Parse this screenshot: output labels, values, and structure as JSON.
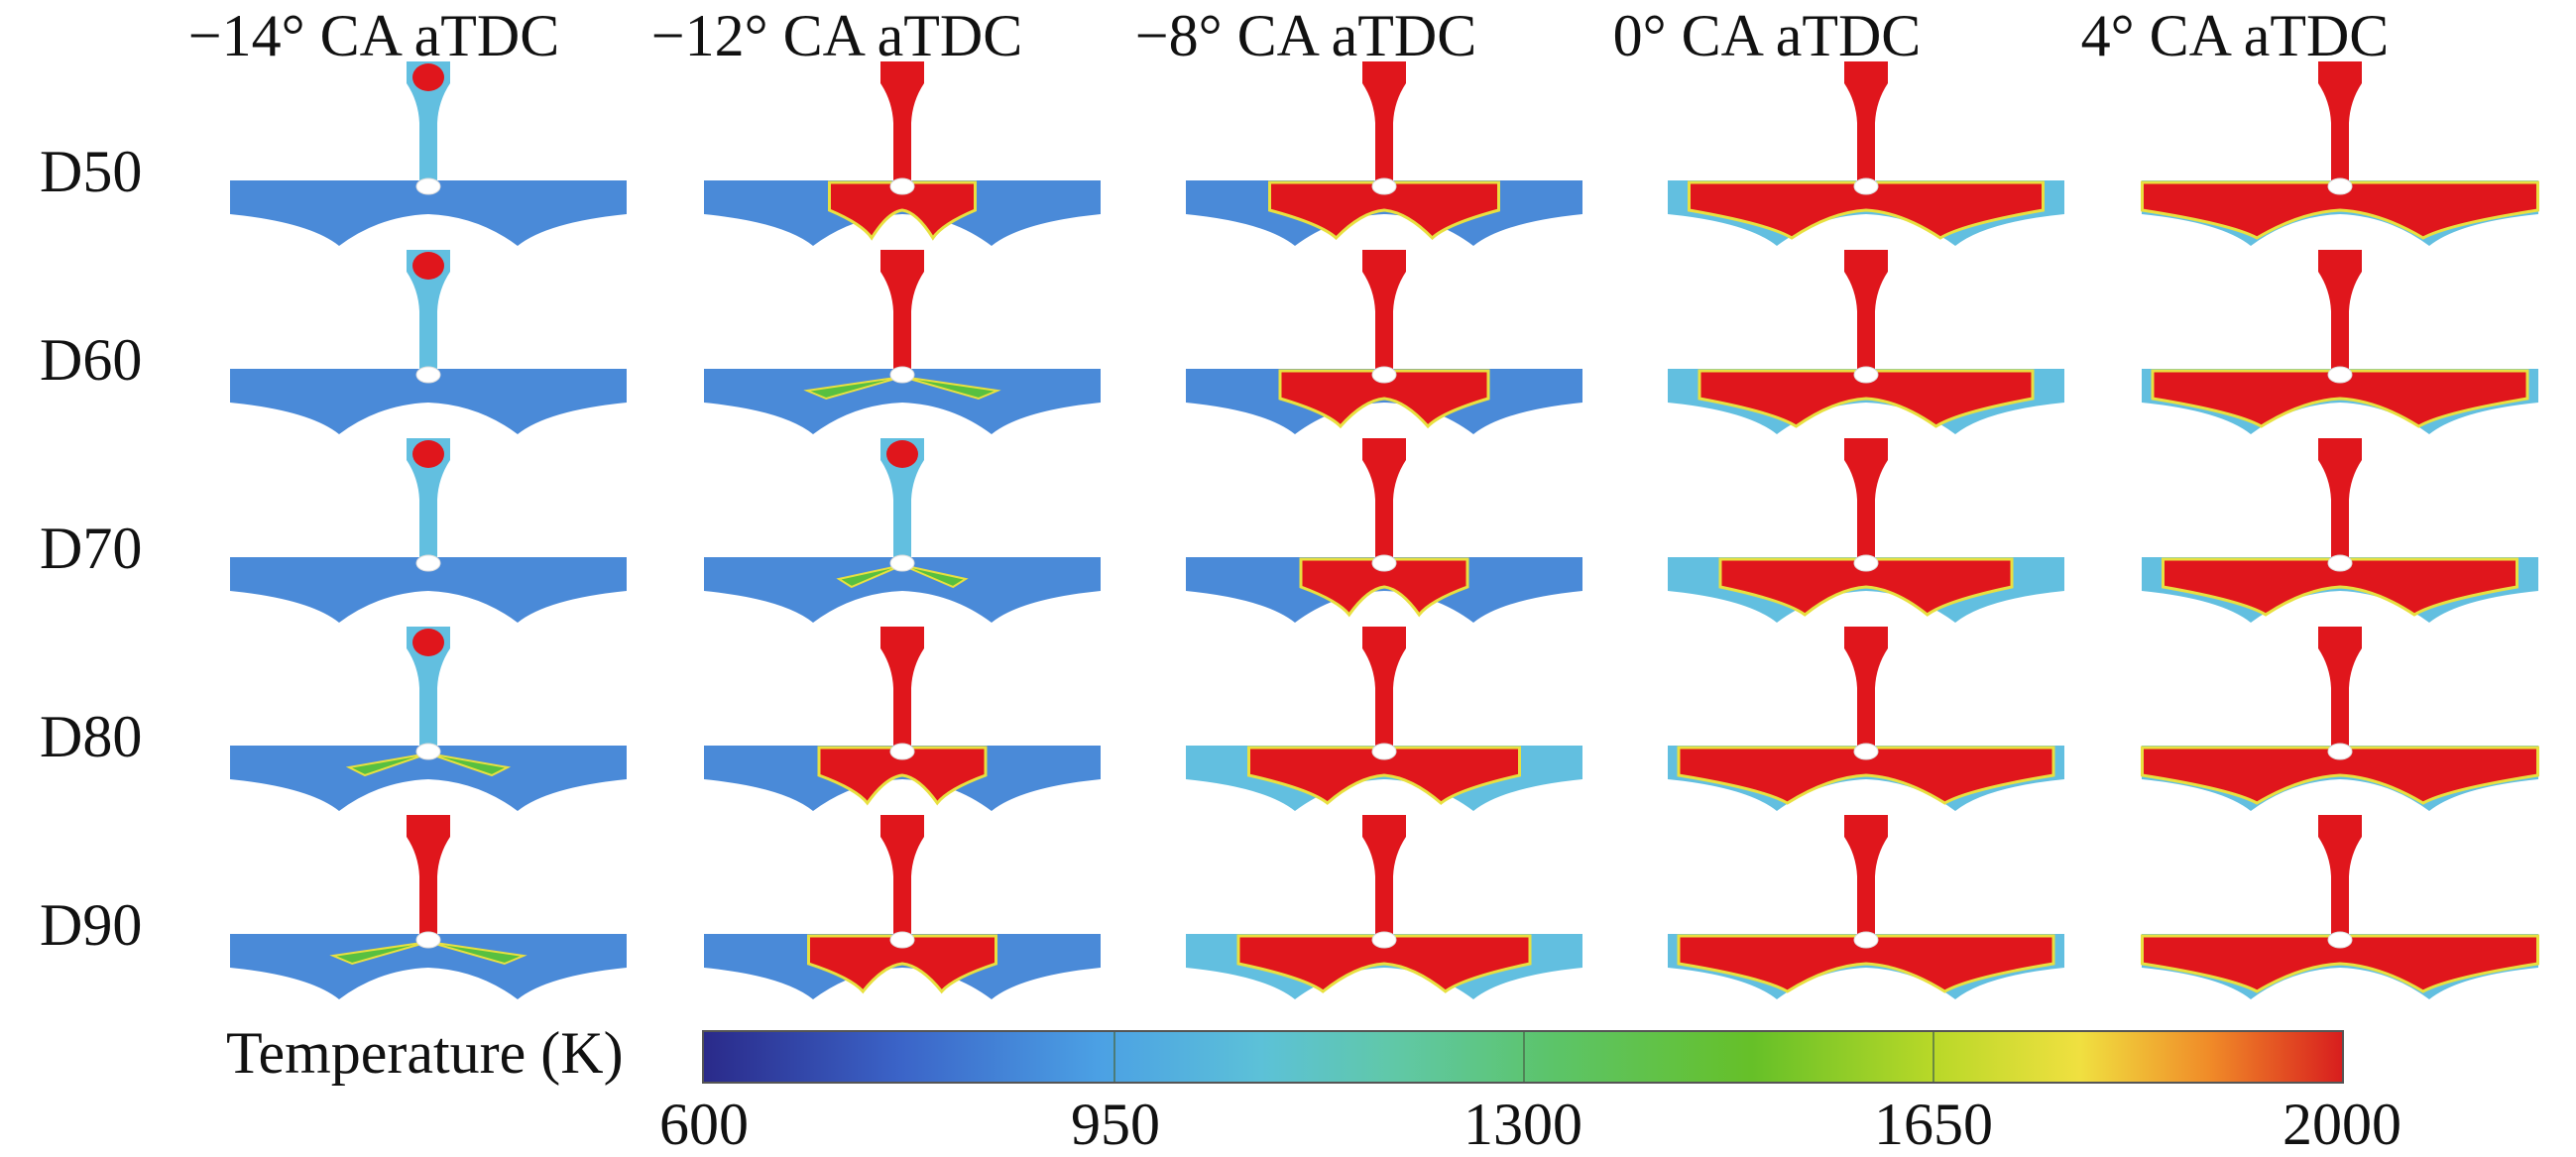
{
  "figure": {
    "columns": [
      {
        "label": "−14° CA aTDC"
      },
      {
        "label": "−12° CA aTDC"
      },
      {
        "label": "−8° CA aTDC"
      },
      {
        "label": "0° CA aTDC"
      },
      {
        "label": "4° CA aTDC"
      }
    ],
    "rows": [
      {
        "label": "D50"
      },
      {
        "label": "D60"
      },
      {
        "label": "D70"
      },
      {
        "label": "D80"
      },
      {
        "label": "D90"
      }
    ],
    "hot_level": [
      [
        0.15,
        0.35,
        0.55,
        0.85,
        0.95
      ],
      [
        0.12,
        0.3,
        0.5,
        0.8,
        0.9
      ],
      [
        0.1,
        0.2,
        0.4,
        0.7,
        0.85
      ],
      [
        0.25,
        0.4,
        0.65,
        0.9,
        0.95
      ],
      [
        0.3,
        0.45,
        0.7,
        0.9,
        0.95
      ]
    ]
  },
  "colorbar": {
    "title": "Temperature (K)",
    "ticks": [
      "600",
      "950",
      "1300",
      "1650",
      "2000"
    ],
    "tick_values": [
      600,
      950,
      1300,
      1650,
      2000
    ],
    "min": 600,
    "max": 2000
  },
  "colors": {
    "cold": "#4a8ad8",
    "cool_cyan": "#62bfe0",
    "warm_green": "#58c040",
    "hot_red": "#e0161c",
    "edge_yellow": "#e8e040"
  }
}
